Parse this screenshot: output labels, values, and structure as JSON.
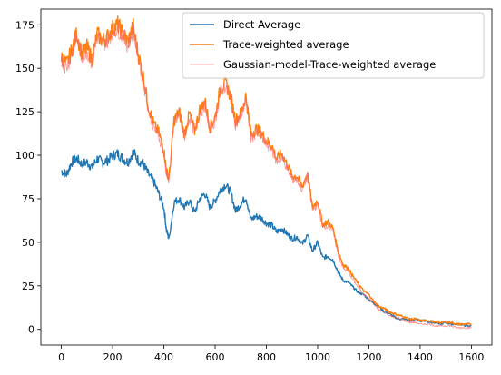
{
  "chart_data": {
    "type": "line",
    "title": "",
    "xlabel": "",
    "ylabel": "",
    "xlim": [
      -80,
      1680
    ],
    "ylim": [
      -9,
      184
    ],
    "xticks": [
      0,
      200,
      400,
      600,
      800,
      1000,
      1200,
      1400,
      1600
    ],
    "yticks": [
      0,
      25,
      50,
      75,
      100,
      125,
      150,
      175
    ],
    "grid": false,
    "legend_position": "upper-right",
    "colors": {
      "direct": "#1f77b4",
      "trace": "#ff7f0e",
      "gaussian": "#ff6b6b"
    },
    "series": [
      {
        "name": "Direct Average",
        "x": [
          0,
          20,
          40,
          60,
          80,
          100,
          120,
          140,
          160,
          180,
          200,
          220,
          240,
          260,
          280,
          300,
          320,
          340,
          360,
          380,
          400,
          410,
          420,
          440,
          460,
          480,
          500,
          520,
          540,
          560,
          580,
          600,
          620,
          640,
          660,
          680,
          700,
          720,
          740,
          760,
          780,
          800,
          820,
          840,
          860,
          880,
          900,
          920,
          940,
          960,
          980,
          1000,
          1020,
          1040,
          1060,
          1080,
          1100,
          1120,
          1140,
          1160,
          1180,
          1200,
          1220,
          1240,
          1260,
          1280,
          1300,
          1320,
          1340,
          1360,
          1380,
          1400,
          1420,
          1440,
          1460,
          1480,
          1500,
          1520,
          1540,
          1560,
          1580,
          1600
        ],
        "values": [
          91,
          89,
          96,
          98,
          95,
          96,
          93,
          98,
          96,
          97,
          100,
          101,
          98,
          96,
          102,
          97,
          95,
          89,
          85,
          78,
          70,
          57,
          52,
          73,
          75,
          70,
          74,
          67,
          75,
          78,
          70,
          74,
          80,
          83,
          79,
          68,
          72,
          76,
          63,
          65,
          64,
          61,
          60,
          56,
          58,
          55,
          52,
          53,
          49,
          54,
          45,
          50,
          41,
          42,
          40,
          33,
          28,
          27,
          24,
          21,
          20,
          17,
          15,
          13,
          10,
          9,
          7,
          6,
          6,
          5,
          6,
          5,
          5,
          4,
          4,
          3,
          4,
          3,
          3,
          3,
          2,
          2
        ]
      },
      {
        "name": "Trace-weighted average",
        "x": [
          0,
          20,
          40,
          60,
          80,
          100,
          120,
          140,
          160,
          180,
          200,
          220,
          240,
          260,
          280,
          300,
          320,
          340,
          360,
          380,
          400,
          410,
          420,
          440,
          460,
          480,
          500,
          520,
          540,
          560,
          580,
          600,
          620,
          640,
          660,
          680,
          700,
          720,
          740,
          760,
          780,
          800,
          820,
          840,
          860,
          880,
          900,
          920,
          940,
          960,
          980,
          1000,
          1020,
          1040,
          1060,
          1080,
          1100,
          1120,
          1140,
          1160,
          1180,
          1200,
          1220,
          1240,
          1260,
          1280,
          1300,
          1320,
          1340,
          1360,
          1380,
          1400,
          1420,
          1440,
          1460,
          1480,
          1500,
          1520,
          1540,
          1560,
          1580,
          1600
        ],
        "values": [
          157,
          152,
          160,
          170,
          158,
          162,
          155,
          170,
          166,
          168,
          173,
          175,
          170,
          165,
          174,
          158,
          145,
          128,
          118,
          113,
          103,
          91,
          87,
          120,
          125,
          112,
          124,
          114,
          126,
          131,
          116,
          122,
          138,
          142,
          134,
          120,
          124,
          134,
          112,
          115,
          113,
          108,
          106,
          98,
          101,
          95,
          88,
          88,
          82,
          90,
          70,
          74,
          60,
          62,
          58,
          45,
          37,
          35,
          30,
          26,
          22,
          20,
          16,
          13,
          12,
          10,
          9,
          8,
          7,
          6,
          6,
          5,
          5,
          5,
          4,
          4,
          4,
          4,
          3,
          3,
          3,
          3
        ]
      },
      {
        "name": "Gaussian-model-Trace-weighted average",
        "x": [
          0,
          20,
          40,
          60,
          80,
          100,
          120,
          140,
          160,
          180,
          200,
          220,
          240,
          260,
          280,
          300,
          320,
          340,
          360,
          380,
          400,
          410,
          420,
          440,
          460,
          480,
          500,
          520,
          540,
          560,
          580,
          600,
          620,
          640,
          660,
          680,
          700,
          720,
          740,
          760,
          780,
          800,
          820,
          840,
          860,
          880,
          900,
          920,
          940,
          960,
          980,
          1000,
          1020,
          1040,
          1060,
          1080,
          1100,
          1120,
          1140,
          1160,
          1180,
          1200,
          1220,
          1240,
          1260,
          1280,
          1300,
          1320,
          1340,
          1360,
          1380,
          1400,
          1420,
          1440,
          1460,
          1480,
          1500,
          1520,
          1540,
          1560,
          1580,
          1600
        ],
        "values": [
          155,
          150,
          158,
          168,
          156,
          160,
          153,
          168,
          164,
          166,
          171,
          173,
          168,
          163,
          172,
          156,
          143,
          126,
          116,
          111,
          101,
          89,
          86,
          118,
          123,
          110,
          122,
          112,
          124,
          129,
          114,
          120,
          136,
          140,
          132,
          118,
          122,
          132,
          110,
          113,
          111,
          106,
          104,
          96,
          99,
          93,
          86,
          86,
          80,
          88,
          68,
          72,
          58,
          60,
          56,
          43,
          35,
          33,
          28,
          24,
          20,
          18,
          14,
          11,
          10,
          8,
          7,
          6,
          5,
          4,
          4,
          3,
          3,
          3,
          2,
          2,
          2,
          2,
          1,
          1,
          1,
          1
        ]
      }
    ]
  }
}
